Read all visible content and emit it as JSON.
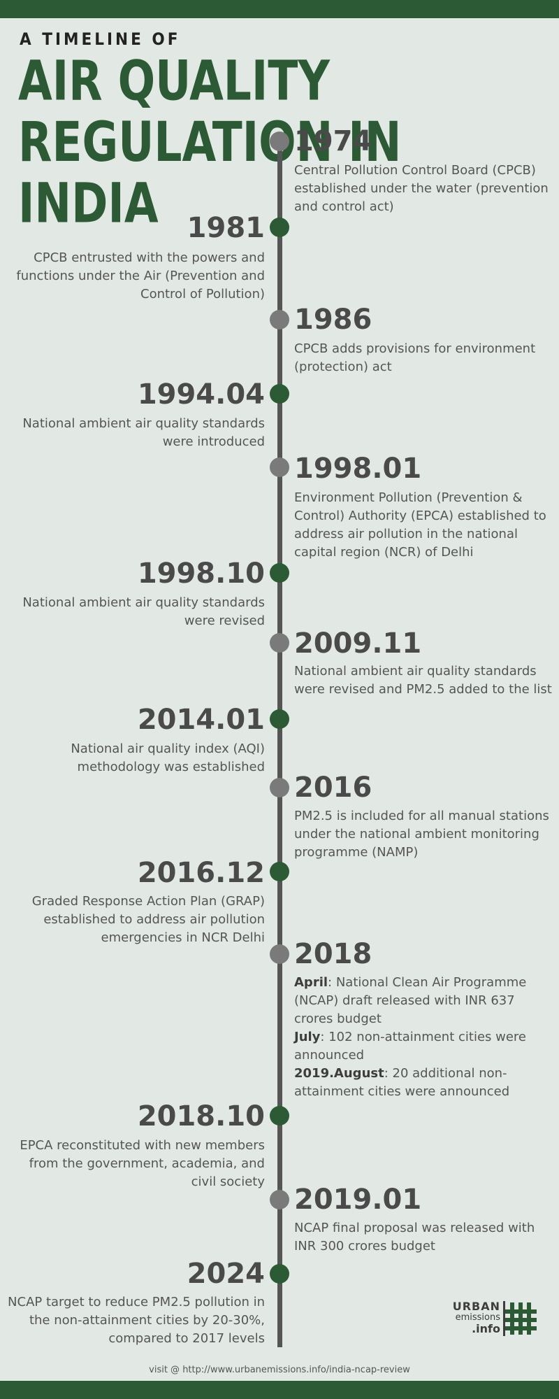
{
  "header": {
    "kicker": "A TIMELINE OF",
    "title": "AIR QUALITY REGULATION IN INDIA"
  },
  "colors": {
    "accent": "#2b5a35",
    "gray_dot": "#7a7a7a",
    "axis": "#555555",
    "background": "#e2e9e4"
  },
  "events": [
    {
      "year": "1974",
      "text": "Central Pollution Control Board (CPCB) established under the water (prevention and control act)"
    },
    {
      "year": "1981",
      "text": "CPCB entrusted with the powers and functions under the Air (Prevention and Control of Pollution)"
    },
    {
      "year": "1986",
      "text": "CPCB adds provisions for environment (protection) act"
    },
    {
      "year": "1994.04",
      "text": "National ambient air quality standards were introduced"
    },
    {
      "year": "1998.01",
      "text": "Environment Pollution (Prevention & Control) Authority (EPCA) established to address air pollution in the national capital region (NCR) of Delhi"
    },
    {
      "year": "1998.10",
      "text": "National ambient air quality standards were revised"
    },
    {
      "year": "2009.11",
      "text": "National ambient air quality standards were revised and PM2.5 added to the list"
    },
    {
      "year": "2014.01",
      "text": "National air quality index (AQI) methodology was established"
    },
    {
      "year": "2016",
      "text": "PM2.5 is included for all manual stations under the national ambient monitoring programme (NAMP)"
    },
    {
      "year": "2016.12",
      "text": "Graded Response Action Plan (GRAP) established to address air pollution emergencies in NCR Delhi"
    },
    {
      "year": "2018",
      "items": [
        {
          "label": "April",
          "text": ": National Clean Air Programme (NCAP) draft released with INR 637 crores budget"
        },
        {
          "label": "July",
          "text": ": 102 non-attainment cities were announced"
        },
        {
          "label": "2019.August",
          "text": ": 20 additional non-attainment cities were announced"
        }
      ]
    },
    {
      "year": "2018.10",
      "text": "EPCA reconstituted with new members from the government, academia, and civil society"
    },
    {
      "year": "2019.01",
      "text": "NCAP final proposal was released with INR 300 crores budget"
    },
    {
      "year": "2024",
      "text": "NCAP target to reduce PM2.5 pollution in the non-attainment cities by 20-30%, compared to 2017 levels"
    }
  ],
  "logo": {
    "line1": "URBAN",
    "line2": "emissions",
    "line3": ".info",
    "icon": "hash-grid-icon"
  },
  "footer": {
    "text": "visit @ http://www.urbanemissions.info/india-ncap-review"
  }
}
